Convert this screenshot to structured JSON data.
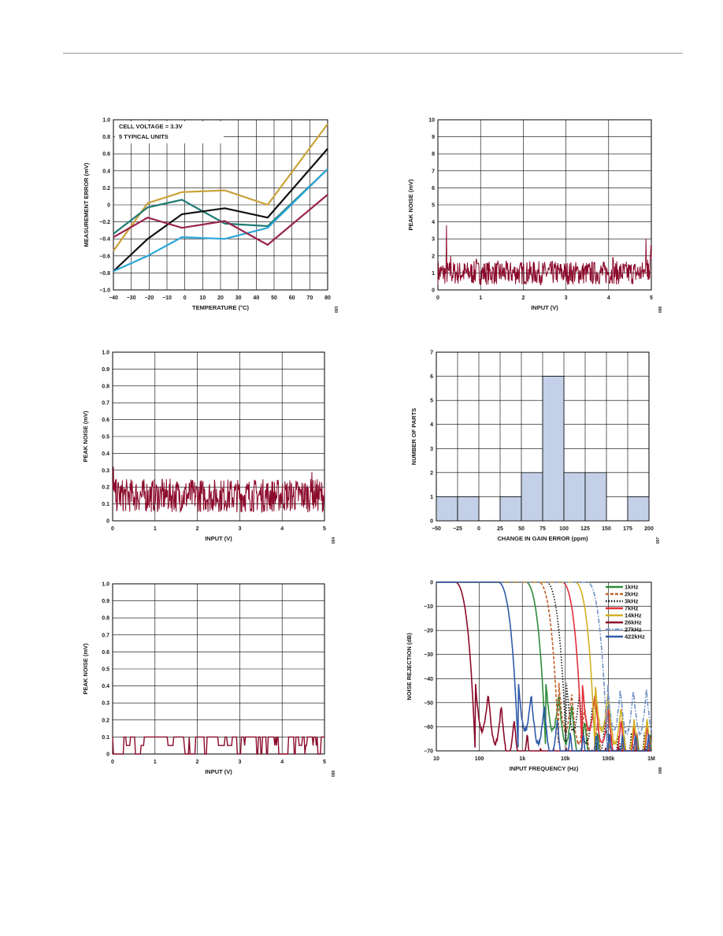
{
  "colors": {
    "c1_teal": "#1f7a73",
    "c1_gold": "#c9a23a",
    "c1_black": "#111111",
    "c1_blue": "#2aa6d6",
    "c1_maroon": "#9a2350",
    "noise": "#8b0a2a",
    "bar_fill": "#c3d0e8",
    "c6_1k": "#2e8b3a",
    "c6_2k": "#c0622e",
    "c6_3k": "#111111",
    "c6_7k": "#e0303a",
    "c6_14k": "#d4b020",
    "c6_26k": "#8b0a2a",
    "c6_27k": "#6f93c8",
    "c6_422k": "#2f5aa8"
  },
  "chart_data": [
    {
      "id": "c1",
      "type": "line",
      "xlabel": "TEMPERATURE (°C)",
      "ylabel": "MEASUREMENT ERROR (mV)",
      "xlim": [
        -40,
        85
      ],
      "ylim": [
        -1.0,
        1.0
      ],
      "xticks": [
        "−40",
        "−30",
        "−20",
        "−10",
        "0",
        "10",
        "20",
        "30",
        "40",
        "50",
        "60",
        "70",
        "80"
      ],
      "yticks": [
        "−1.0",
        "−0.8",
        "−0.6",
        "−0.4",
        "−0.2",
        "0",
        "0.2",
        "0.4",
        "0.6",
        "0.8",
        "1.0"
      ],
      "annotations": [
        "CELL VOLTAGE = 3.3V",
        "5 TYPICAL UNITS"
      ],
      "figure_id": "003",
      "x": [
        -40,
        -20,
        0,
        25,
        50,
        85
      ],
      "series": [
        {
          "color": "c1_gold",
          "values": [
            -0.54,
            0.02,
            0.15,
            0.17,
            0.0,
            0.95
          ]
        },
        {
          "color": "c1_teal",
          "values": [
            -0.34,
            -0.03,
            0.06,
            -0.22,
            -0.25,
            0.42
          ]
        },
        {
          "color": "c1_black",
          "values": [
            -0.78,
            -0.4,
            -0.11,
            -0.04,
            -0.15,
            0.66
          ]
        },
        {
          "color": "c1_blue",
          "values": [
            -0.78,
            -0.6,
            -0.38,
            -0.4,
            -0.27,
            0.42
          ]
        },
        {
          "color": "c1_maroon",
          "values": [
            -0.38,
            -0.15,
            -0.27,
            -0.19,
            -0.47,
            0.12
          ]
        }
      ]
    },
    {
      "id": "c2",
      "type": "line",
      "xlabel": "INPUT (V)",
      "ylabel": "PEAK NOISE (mV)",
      "xlim": [
        0,
        5
      ],
      "ylim": [
        0,
        10
      ],
      "xticks": [
        "0",
        "1",
        "2",
        "3",
        "4",
        "5"
      ],
      "yticks": [
        "0",
        "1",
        "2",
        "3",
        "4",
        "5",
        "6",
        "7",
        "8",
        "9",
        "10"
      ],
      "figure_id": "006",
      "noise_min": 0.3,
      "noise_max": 1.7,
      "noise_spikes": [
        [
          0.2,
          3.8
        ],
        [
          0.3,
          2.0
        ],
        [
          0.9,
          1.8
        ],
        [
          4.1,
          1.9
        ],
        [
          4.95,
          4.3
        ],
        [
          4.99,
          3.5
        ]
      ]
    },
    {
      "id": "c3",
      "type": "line",
      "xlabel": "INPUT (V)",
      "ylabel": "PEAK NOISE (mV)",
      "xlim": [
        0,
        5
      ],
      "ylim": [
        0,
        1.0
      ],
      "xticks": [
        "0",
        "1",
        "2",
        "3",
        "4",
        "5"
      ],
      "yticks": [
        "0",
        "0.1",
        "0.2",
        "0.3",
        "0.4",
        "0.5",
        "0.6",
        "0.7",
        "0.8",
        "0.9",
        "1.0"
      ],
      "figure_id": "004",
      "noise_min": 0.05,
      "noise_max": 0.25,
      "noise_spikes": [
        [
          0.02,
          0.32
        ],
        [
          4.7,
          0.29
        ]
      ]
    },
    {
      "id": "c4",
      "type": "bar",
      "xlabel": "CHANGE IN GAIN ERROR (ppm)",
      "ylabel": "NUMBER OF PARTS",
      "xlim": [
        -50,
        200
      ],
      "ylim": [
        0,
        7
      ],
      "xticks": [
        "−50",
        "−25",
        "0",
        "25",
        "50",
        "75",
        "100",
        "125",
        "150",
        "175",
        "200"
      ],
      "yticks": [
        "0",
        "1",
        "2",
        "3",
        "4",
        "5",
        "6",
        "7"
      ],
      "figure_id": "007",
      "bins": [
        [
          -50,
          -25,
          1
        ],
        [
          -25,
          0,
          1
        ],
        [
          0,
          25,
          0
        ],
        [
          25,
          50,
          1
        ],
        [
          50,
          75,
          2
        ],
        [
          75,
          100,
          6
        ],
        [
          100,
          125,
          2
        ],
        [
          125,
          150,
          2
        ],
        [
          150,
          175,
          0
        ],
        [
          175,
          200,
          1
        ]
      ]
    },
    {
      "id": "c5",
      "type": "line",
      "xlabel": "INPUT (V)",
      "ylabel": "PEAK NOISE (mV)",
      "xlim": [
        0,
        5
      ],
      "ylim": [
        0,
        1.0
      ],
      "xticks": [
        "0",
        "1",
        "2",
        "3",
        "4",
        "5"
      ],
      "yticks": [
        "0",
        "0.1",
        "0.2",
        "0.3",
        "0.4",
        "0.5",
        "0.6",
        "0.7",
        "0.8",
        "0.9",
        "1.0"
      ],
      "figure_id": "005",
      "levels": [
        0.0,
        0.05,
        0.1
      ]
    },
    {
      "id": "c6",
      "type": "line",
      "xlabel": "INPUT FREQUENCY (Hz)",
      "ylabel": "NOISE REJECTION (dB)",
      "xscale": "log",
      "xlim": [
        10,
        1000000
      ],
      "ylim": [
        -70,
        0
      ],
      "xticks": [
        "10",
        "100",
        "1k",
        "10k",
        "100k",
        "1M"
      ],
      "yticks": [
        "−70",
        "−60",
        "−50",
        "−40",
        "−30",
        "−20",
        "−10",
        "0"
      ],
      "figure_id": "008",
      "legend": [
        "1kHz",
        "2kHz",
        "3kHz",
        "7kHz",
        "14kHz",
        "26kHz",
        "27kHz",
        "422kHz"
      ],
      "series": [
        {
          "name": "1kHz",
          "color": "c6_1k",
          "dash": "",
          "cutoff": 3500,
          "floor": -62
        },
        {
          "name": "2kHz",
          "color": "c6_2k",
          "dash": "4,2",
          "cutoff": 7000,
          "floor": -62
        },
        {
          "name": "3kHz",
          "color": "c6_3k",
          "dash": "1.5,2",
          "cutoff": 10500,
          "floor": -62
        },
        {
          "name": "7kHz",
          "color": "c6_7k",
          "dash": "",
          "cutoff": 24500,
          "floor": -59
        },
        {
          "name": "14kHz",
          "color": "c6_14k",
          "dash": "",
          "cutoff": 49000,
          "floor": -56
        },
        {
          "name": "26kHz",
          "color": "c6_26k",
          "dash": "",
          "cutoff": 80,
          "floor": -68
        },
        {
          "name": "27kHz",
          "color": "c6_27k",
          "dash": "6,2,1.5,2",
          "cutoff": 94500,
          "floor": -44
        },
        {
          "name": "422kHz",
          "color": "c6_422k",
          "dash": "",
          "cutoff": 800,
          "floor": -62
        }
      ]
    }
  ]
}
